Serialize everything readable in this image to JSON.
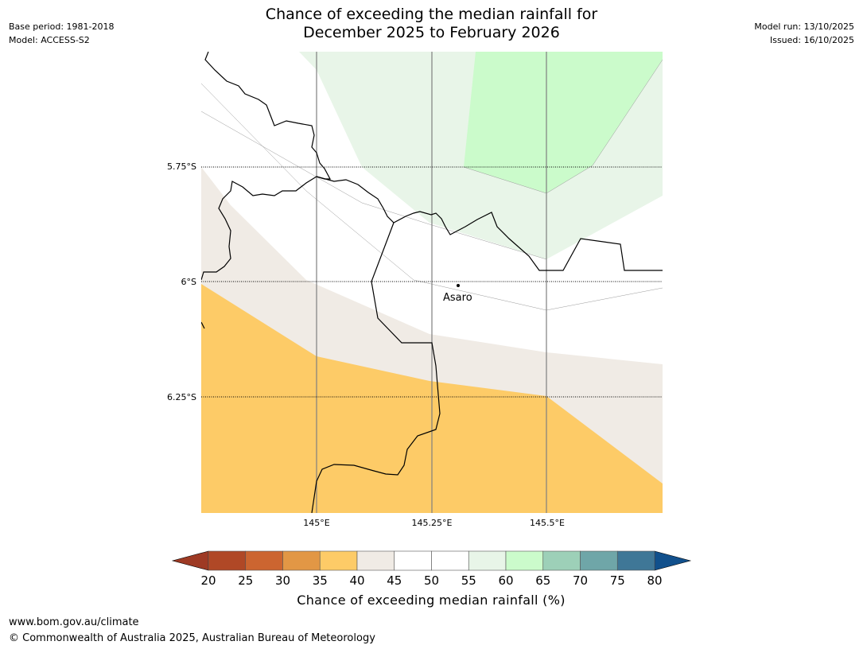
{
  "header": {
    "title_line1": "Chance of exceeding the median rainfall for",
    "title_line2": "December 2025 to February 2026",
    "base_period": "Base period: 1981-2018",
    "model": "Model: ACCESS-S2",
    "model_run": "Model run: 13/10/2025",
    "issued": "Issued: 16/10/2025"
  },
  "map": {
    "lat_labels": [
      "5.75°S",
      "6°S",
      "6.25°S"
    ],
    "lon_labels": [
      "145°E",
      "145.25°E",
      "145.5°E"
    ],
    "town": "Asaro",
    "colors": {
      "band_35_40": "#fdcb67",
      "band_40_45": "#f0ebe5",
      "band_45_55": "#ffffff",
      "band_55_60": "#e8f5e8",
      "band_60_65": "#cbfbcb"
    }
  },
  "colorbar": {
    "ticks": [
      "20",
      "25",
      "30",
      "35",
      "40",
      "45",
      "50",
      "55",
      "60",
      "65",
      "70",
      "75",
      "80"
    ],
    "colors": [
      "#b04826",
      "#cc6530",
      "#e29745",
      "#fdcb67",
      "#f0ebe5",
      "#ffffff",
      "#ffffff",
      "#e8f5e8",
      "#cbfbcb",
      "#9dd0b8",
      "#6fa6a8",
      "#3f7797"
    ],
    "under_color": "#9e3a24",
    "over_color": "#11508c",
    "label": "Chance of exceeding median rainfall (%)"
  },
  "footer": {
    "url": "www.bom.gov.au/climate",
    "copyright": "© Commonwealth of Australia 2025, Australian Bureau of Meteorology"
  }
}
